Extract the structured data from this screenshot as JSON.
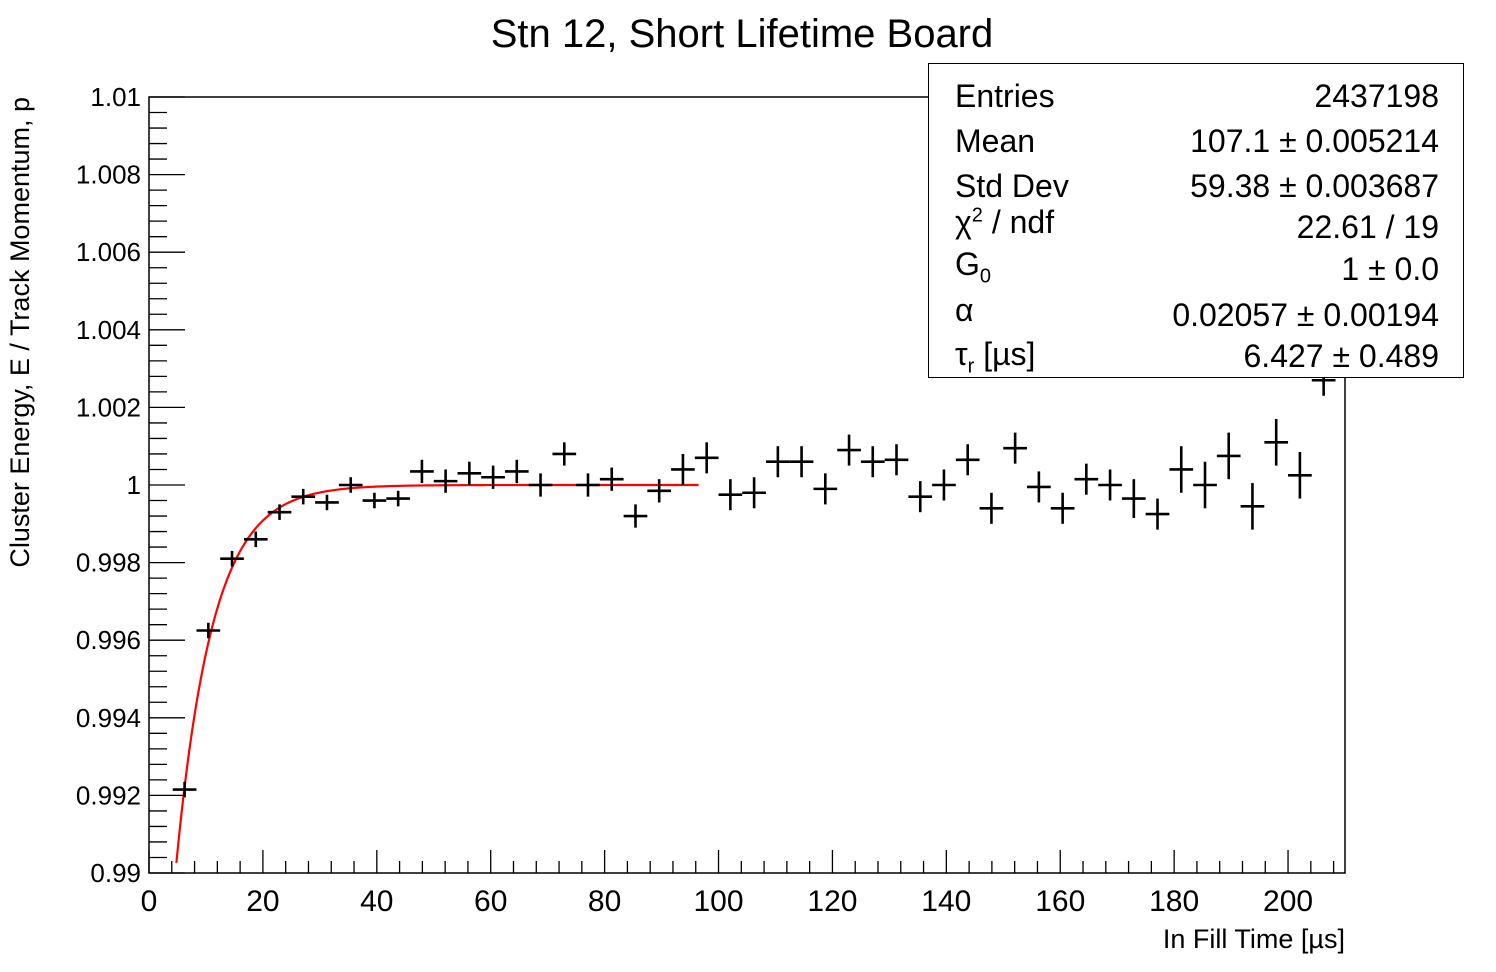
{
  "chart_data": {
    "type": "scatter",
    "title": "Stn 12, Short Lifetime Board",
    "xlabel": "In Fill Time [µs]",
    "ylabel": "Cluster Energy, E / Track Momentum, p",
    "xlim": [
      0,
      210
    ],
    "ylim": [
      0.99,
      1.01
    ],
    "x_ticks": [
      "0",
      "20",
      "40",
      "60",
      "80",
      "100",
      "120",
      "140",
      "160",
      "180",
      "200"
    ],
    "y_ticks": [
      "0.99",
      "0.992",
      "0.994",
      "0.996",
      "0.998",
      "1",
      "1.002",
      "1.004",
      "1.006",
      "1.008",
      "1.01"
    ],
    "grid": false,
    "series": [
      {
        "color": "#000000",
        "x_halfwidth": 2.08,
        "points": [
          {
            "x": 6.25,
            "y": 0.99215,
            "err": 0.0002
          },
          {
            "x": 10.42,
            "y": 0.99625,
            "err": 0.0002
          },
          {
            "x": 14.58,
            "y": 0.9981,
            "err": 0.0002
          },
          {
            "x": 18.75,
            "y": 0.9986,
            "err": 0.0002
          },
          {
            "x": 22.92,
            "y": 0.9993,
            "err": 0.0002
          },
          {
            "x": 27.08,
            "y": 0.9997,
            "err": 0.0002
          },
          {
            "x": 31.25,
            "y": 0.99955,
            "err": 0.0002
          },
          {
            "x": 35.42,
            "y": 1.0,
            "err": 0.0002
          },
          {
            "x": 39.58,
            "y": 0.9996,
            "err": 0.0002
          },
          {
            "x": 43.75,
            "y": 0.99965,
            "err": 0.0002
          },
          {
            "x": 47.92,
            "y": 1.00035,
            "err": 0.0003
          },
          {
            "x": 52.08,
            "y": 1.0001,
            "err": 0.0003
          },
          {
            "x": 56.25,
            "y": 1.0003,
            "err": 0.0003
          },
          {
            "x": 60.42,
            "y": 1.0002,
            "err": 0.0003
          },
          {
            "x": 64.58,
            "y": 1.00035,
            "err": 0.0003
          },
          {
            "x": 68.75,
            "y": 1.0,
            "err": 0.0003
          },
          {
            "x": 72.92,
            "y": 1.0008,
            "err": 0.0003
          },
          {
            "x": 77.08,
            "y": 1.0,
            "err": 0.0003
          },
          {
            "x": 81.25,
            "y": 1.00015,
            "err": 0.0003
          },
          {
            "x": 85.42,
            "y": 0.9992,
            "err": 0.0003
          },
          {
            "x": 89.58,
            "y": 0.99985,
            "err": 0.0003
          },
          {
            "x": 93.75,
            "y": 1.0004,
            "err": 0.0004
          },
          {
            "x": 97.92,
            "y": 1.0007,
            "err": 0.0004
          },
          {
            "x": 102.08,
            "y": 0.99975,
            "err": 0.0004
          },
          {
            "x": 106.25,
            "y": 0.9998,
            "err": 0.0004
          },
          {
            "x": 110.42,
            "y": 1.0006,
            "err": 0.0004
          },
          {
            "x": 114.58,
            "y": 1.0006,
            "err": 0.0004
          },
          {
            "x": 118.75,
            "y": 0.9999,
            "err": 0.0004
          },
          {
            "x": 122.92,
            "y": 1.0009,
            "err": 0.0004
          },
          {
            "x": 127.08,
            "y": 1.0006,
            "err": 0.0004
          },
          {
            "x": 131.25,
            "y": 1.00065,
            "err": 0.0004
          },
          {
            "x": 135.42,
            "y": 0.9997,
            "err": 0.0004
          },
          {
            "x": 139.58,
            "y": 1.0,
            "err": 0.0004
          },
          {
            "x": 143.75,
            "y": 1.00065,
            "err": 0.0004
          },
          {
            "x": 147.92,
            "y": 0.9994,
            "err": 0.0004
          },
          {
            "x": 152.08,
            "y": 1.00095,
            "err": 0.0004
          },
          {
            "x": 156.25,
            "y": 0.99995,
            "err": 0.0004
          },
          {
            "x": 160.42,
            "y": 0.9994,
            "err": 0.0004
          },
          {
            "x": 164.58,
            "y": 1.00015,
            "err": 0.0004
          },
          {
            "x": 168.75,
            "y": 1.0,
            "err": 0.0004
          },
          {
            "x": 172.92,
            "y": 0.99965,
            "err": 0.0005
          },
          {
            "x": 177.08,
            "y": 0.99925,
            "err": 0.0004
          },
          {
            "x": 181.25,
            "y": 1.0004,
            "err": 0.0006
          },
          {
            "x": 185.42,
            "y": 1.0,
            "err": 0.0006
          },
          {
            "x": 189.58,
            "y": 1.00075,
            "err": 0.0006
          },
          {
            "x": 193.75,
            "y": 0.99945,
            "err": 0.0006
          },
          {
            "x": 197.92,
            "y": 1.0011,
            "err": 0.0006
          },
          {
            "x": 202.08,
            "y": 1.00025,
            "err": 0.0006
          },
          {
            "x": 206.25,
            "y": 1.0027,
            "err": 0.0004
          }
        ]
      }
    ],
    "fit": {
      "color": "#ff0000",
      "function": "G0*(1 - alpha*exp(-t/tau_r))",
      "G0": 1.0,
      "alpha": 0.02057,
      "tau_r": 6.427,
      "x_range": [
        4.5,
        96.5
      ]
    },
    "stats_box": {
      "position": "top-right",
      "rows": [
        {
          "label": "Entries",
          "value": "2437198"
        },
        {
          "label": "Mean",
          "value": "107.1 ± 0.005214"
        },
        {
          "label": "Std Dev",
          "value": "59.38 ± 0.003687"
        },
        {
          "label_main": "χ",
          "label_sup": "2",
          "label_rest": " / ndf",
          "value": "22.61 / 19"
        },
        {
          "label_main": "G",
          "label_sub": "0",
          "value": "1 ± 0.0"
        },
        {
          "label": "α",
          "value": "0.02057 ± 0.00194"
        },
        {
          "label_main": "τ",
          "label_sub": "r",
          "label_rest": " [µs]",
          "value": "6.427 ± 0.489"
        }
      ]
    }
  }
}
